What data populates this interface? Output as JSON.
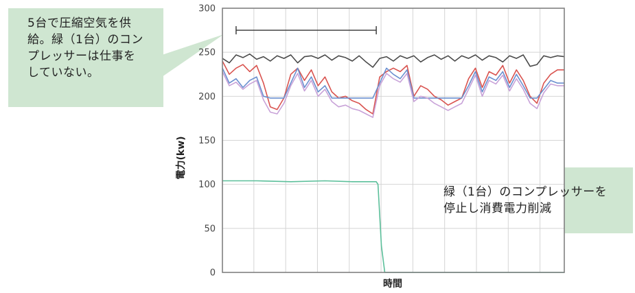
{
  "callouts": {
    "left": "5台で圧縮空気を供\n給。緑（1台）のコン\nプレッサーは仕事を\nしていない。",
    "right": "緑（1台）のコンプレッサーを\n停止し消費電力削減"
  },
  "colors": {
    "callout_bg": "#cfe6d1",
    "grid": "#d4d4d4",
    "axis": "#808080",
    "bracket": "#333333"
  },
  "chart_data": {
    "type": "line",
    "title": "",
    "xlabel": "時間",
    "ylabel": "電力(kw)",
    "ylim": [
      0,
      300
    ],
    "yticks": [
      0,
      50,
      100,
      150,
      200,
      250,
      300
    ],
    "xlim": [
      0,
      100
    ],
    "x_grid": [
      9.2,
      18.5,
      27.8,
      37.1,
      46.4,
      55.7,
      65.0,
      74.3,
      83.6,
      92.9
    ],
    "grid": true,
    "legend": "none",
    "annotation_bracket": {
      "x_start": 4,
      "x_end": 45,
      "y": 275
    },
    "series": [
      {
        "color": "#4a4a4a",
        "x": [
          0,
          2,
          4,
          6,
          8,
          10,
          12,
          14,
          16,
          18,
          20,
          22,
          24,
          26,
          28,
          30,
          32,
          34,
          36,
          38,
          40,
          42,
          44,
          46,
          48,
          50,
          52,
          54,
          56,
          58,
          60,
          62,
          64,
          66,
          68,
          70,
          72,
          74,
          76,
          78,
          80,
          82,
          84,
          86,
          88,
          90,
          92,
          94,
          96,
          98,
          100
        ],
        "values": [
          243,
          238,
          247,
          244,
          248,
          242,
          245,
          240,
          246,
          243,
          247,
          238,
          245,
          246,
          243,
          247,
          241,
          246,
          244,
          240,
          246,
          239,
          233,
          243,
          245,
          240,
          246,
          243,
          246,
          239,
          244,
          247,
          242,
          246,
          240,
          246,
          243,
          247,
          241,
          246,
          244,
          239,
          246,
          243,
          247,
          234,
          236,
          246,
          244,
          246,
          245
        ]
      },
      {
        "color": "#d9534f",
        "x": [
          0,
          2,
          4,
          6,
          8,
          10,
          12,
          14,
          16,
          18,
          20,
          22,
          24,
          26,
          28,
          30,
          32,
          34,
          36,
          38,
          40,
          42,
          44,
          46,
          48,
          50,
          52,
          54,
          56,
          58,
          60,
          62,
          64,
          66,
          68,
          70,
          72,
          74,
          76,
          78,
          80,
          82,
          84,
          86,
          88,
          90,
          92,
          94,
          96,
          98,
          100
        ],
        "values": [
          240,
          225,
          232,
          236,
          228,
          235,
          215,
          188,
          185,
          198,
          225,
          232,
          218,
          230,
          212,
          222,
          205,
          198,
          200,
          195,
          192,
          185,
          180,
          222,
          228,
          232,
          228,
          235,
          200,
          212,
          208,
          200,
          196,
          190,
          194,
          198,
          220,
          232,
          210,
          228,
          224,
          235,
          215,
          230,
          218,
          200,
          192,
          215,
          225,
          230,
          230
        ]
      },
      {
        "color": "#6a8fcf",
        "x": [
          0,
          2,
          4,
          6,
          8,
          10,
          12,
          14,
          16,
          18,
          20,
          22,
          24,
          26,
          28,
          30,
          32,
          34,
          36,
          38,
          40,
          42,
          44,
          46,
          48,
          50,
          52,
          54,
          56,
          58,
          60,
          62,
          64,
          66,
          68,
          70,
          72,
          74,
          76,
          78,
          80,
          82,
          84,
          86,
          88,
          90,
          92,
          94,
          96,
          98,
          100
        ],
        "values": [
          232,
          215,
          220,
          210,
          218,
          222,
          200,
          198,
          198,
          198,
          215,
          232,
          210,
          222,
          205,
          212,
          198,
          198,
          198,
          198,
          198,
          198,
          198,
          215,
          232,
          225,
          220,
          230,
          198,
          198,
          198,
          198,
          198,
          198,
          198,
          198,
          212,
          228,
          205,
          222,
          218,
          228,
          210,
          225,
          212,
          198,
          198,
          208,
          218,
          215,
          215
        ]
      },
      {
        "color": "#c8a2d8",
        "x": [
          0,
          2,
          4,
          6,
          8,
          10,
          12,
          14,
          16,
          18,
          20,
          22,
          24,
          26,
          28,
          30,
          32,
          34,
          36,
          38,
          40,
          42,
          44,
          46,
          48,
          50,
          52,
          54,
          56,
          58,
          60,
          62,
          64,
          66,
          68,
          70,
          72,
          74,
          76,
          78,
          80,
          82,
          84,
          86,
          88,
          90,
          92,
          94,
          96,
          98,
          100
        ],
        "values": [
          228,
          212,
          216,
          208,
          214,
          218,
          196,
          182,
          180,
          192,
          212,
          226,
          206,
          218,
          200,
          208,
          194,
          188,
          190,
          186,
          184,
          180,
          176,
          212,
          226,
          220,
          216,
          226,
          194,
          200,
          198,
          192,
          188,
          184,
          188,
          192,
          208,
          224,
          200,
          218,
          214,
          224,
          206,
          220,
          208,
          192,
          186,
          204,
          214,
          212,
          212
        ]
      },
      {
        "color": "#5bbf9a",
        "x": [
          0,
          10,
          20,
          30,
          38,
          45,
          45.5,
          46.5,
          47.5,
          60,
          80,
          100
        ],
        "values": [
          104,
          104,
          103,
          104,
          103,
          103,
          100,
          30,
          0,
          0,
          0,
          0
        ]
      }
    ]
  }
}
